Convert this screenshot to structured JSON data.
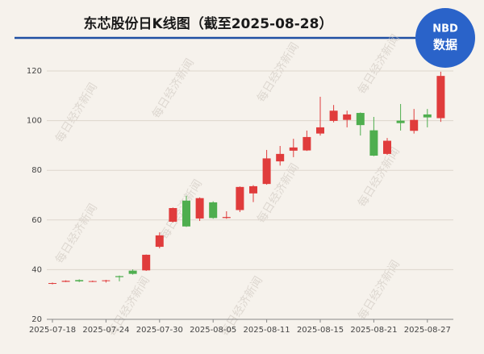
{
  "chart_data": {
    "type": "candlestick",
    "title": "东芯股份日K线图（截至2025-08-28）",
    "logo": {
      "top": "NBD",
      "bottom": "数据"
    },
    "watermark": "每日经济新闻",
    "categories": [
      "2025-07-18",
      null,
      null,
      null,
      "2025-07-24",
      null,
      null,
      null,
      "2025-07-30",
      null,
      null,
      null,
      "2025-08-05",
      null,
      null,
      null,
      "2025-08-11",
      null,
      null,
      null,
      "2025-08-15",
      null,
      null,
      null,
      "2025-08-21",
      null,
      null,
      null,
      "2025-08-27",
      null
    ],
    "open": [
      34.3,
      35.1,
      35.8,
      35.2,
      35.4,
      37.4,
      39.6,
      39.7,
      49.2,
      59.3,
      67.8,
      60.6,
      67.1,
      60.8,
      64.0,
      70.7,
      74.5,
      83.6,
      87.9,
      88.0,
      94.8,
      99.9,
      100.3,
      103.1,
      96.1,
      86.6,
      100.0,
      95.9,
      102.5,
      101.0
    ],
    "high": [
      34.8,
      35.7,
      36.1,
      35.6,
      35.9,
      37.6,
      40.1,
      46.1,
      55.0,
      65.0,
      69.8,
      69.1,
      67.5,
      63.5,
      73.5,
      74.0,
      88.2,
      89.8,
      92.7,
      96.0,
      109.6,
      106.3,
      104.0,
      103.3,
      101.5,
      93.0,
      106.7,
      104.7,
      104.7,
      119.7
    ],
    "low": [
      34.1,
      35.0,
      35.0,
      35.0,
      34.8,
      35.3,
      38.0,
      39.5,
      48.6,
      59.0,
      57.2,
      59.6,
      60.5,
      60.5,
      63.2,
      67.2,
      74.2,
      81.9,
      85.3,
      87.8,
      94.0,
      99.3,
      97.3,
      94.0,
      85.7,
      86.2,
      96.0,
      94.8,
      97.3,
      99.5
    ],
    "close": [
      34.6,
      35.5,
      35.3,
      35.4,
      35.7,
      37.0,
      38.3,
      46.0,
      53.8,
      64.8,
      57.4,
      68.8,
      60.8,
      61.2,
      73.3,
      73.6,
      84.8,
      86.6,
      89.2,
      93.4,
      97.3,
      104.0,
      102.5,
      98.2,
      85.9,
      91.9,
      99.0,
      100.3,
      101.3,
      118.0
    ],
    "up_color": "#e03c3c",
    "down_color": "#4fae4f",
    "ylim": [
      20,
      120
    ],
    "yticks": [
      20,
      40,
      60,
      80,
      100,
      120
    ],
    "grid": true
  }
}
